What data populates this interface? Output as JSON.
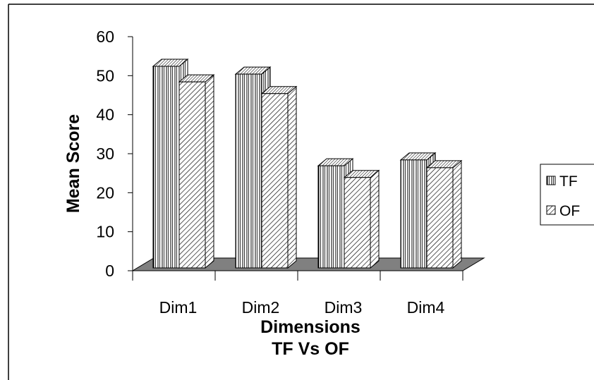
{
  "chart_data": {
    "type": "bar",
    "title": "",
    "xlabel": "Dimensions",
    "xlabel_sub": "TF Vs OF",
    "ylabel": "Mean Score",
    "categories": [
      "Dim1",
      "Dim2",
      "Dim3",
      "Dim4"
    ],
    "series": [
      {
        "name": "TF",
        "values": [
          51.5,
          49.5,
          26,
          27.5
        ]
      },
      {
        "name": "OF",
        "values": [
          47.5,
          44.5,
          23,
          25.5
        ]
      }
    ],
    "ylim": [
      0,
      60
    ],
    "yticks": [
      "0",
      "10",
      "20",
      "30",
      "40",
      "50",
      "60"
    ],
    "grid": false,
    "legend": "right",
    "three_d": true,
    "colors": {
      "fill": "#ffffff",
      "stroke": "#000000",
      "floor": "#808080"
    }
  }
}
